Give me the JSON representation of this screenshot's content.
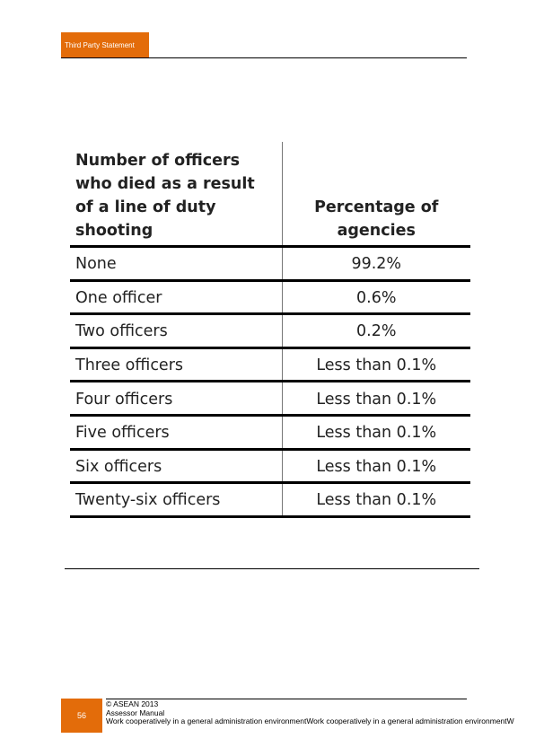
{
  "header": {
    "section_label": "Third Party Statement"
  },
  "table": {
    "headers": [
      "Number of officers who died as a result of a line of duty shooting",
      "Percentage of agencies"
    ],
    "rows": [
      [
        "None",
        "99.2%"
      ],
      [
        "One officer",
        "0.6%"
      ],
      [
        "Two officers",
        "0.2%"
      ],
      [
        "Three officers",
        "Less than 0.1%"
      ],
      [
        "Four officers",
        "Less than 0.1%"
      ],
      [
        "Five officers",
        "Less than 0.1%"
      ],
      [
        "Six officers",
        "Less than 0.1%"
      ],
      [
        "Twenty-six officers",
        "Less than 0.1%"
      ]
    ]
  },
  "footer": {
    "page_number": "56",
    "copyright": "© ASEAN 2013",
    "manual": "Assessor Manual",
    "unit_title": "Work cooperatively in a general administration environmentWork cooperatively in a general administration environmentW"
  },
  "colors": {
    "accent": "#E36C0A"
  }
}
